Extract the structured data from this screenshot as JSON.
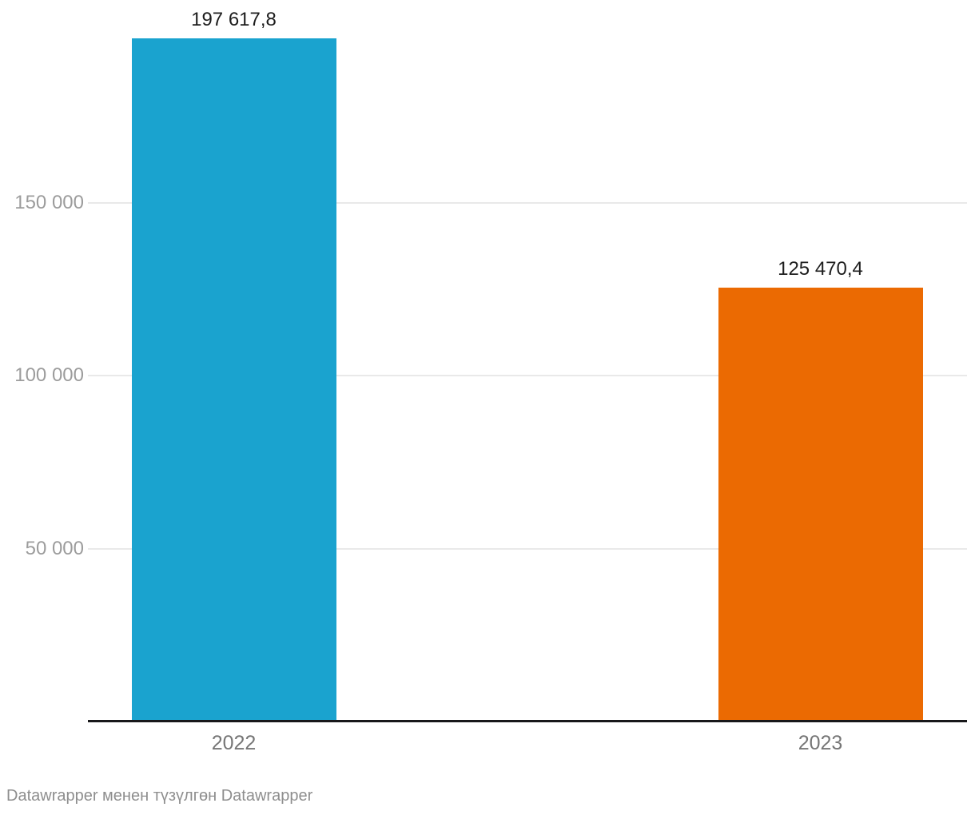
{
  "chart_data": {
    "type": "bar",
    "categories": [
      "2022",
      "2023"
    ],
    "values": [
      197617.8,
      125470.4
    ],
    "value_labels": [
      "197 617,8",
      "125 470,4"
    ],
    "bar_colors": [
      "#1AA3CF",
      "#EB6A02"
    ],
    "yticks": [
      {
        "value": 150000,
        "label": "150 000"
      },
      {
        "value": 100000,
        "label": "100 000"
      },
      {
        "value": 50000,
        "label": "50 000"
      }
    ],
    "ylim": [
      0,
      202000
    ],
    "grid": true,
    "legend": false,
    "title": "",
    "xlabel": "",
    "ylabel": ""
  },
  "footer": {
    "attribution": "Datawrapper менен түзүлгөн Datawrapper"
  },
  "colors": {
    "bar_2022": "#1AA3CF",
    "bar_2023": "#EB6A02",
    "gridline": "#E9E9E9",
    "axis_line": "#18181A",
    "tick_label": "#9C9C9C",
    "category_label": "#767676",
    "value_label": "#1D1D1D",
    "footer_text": "#8E8E8E",
    "background": "#FFFFFF"
  }
}
